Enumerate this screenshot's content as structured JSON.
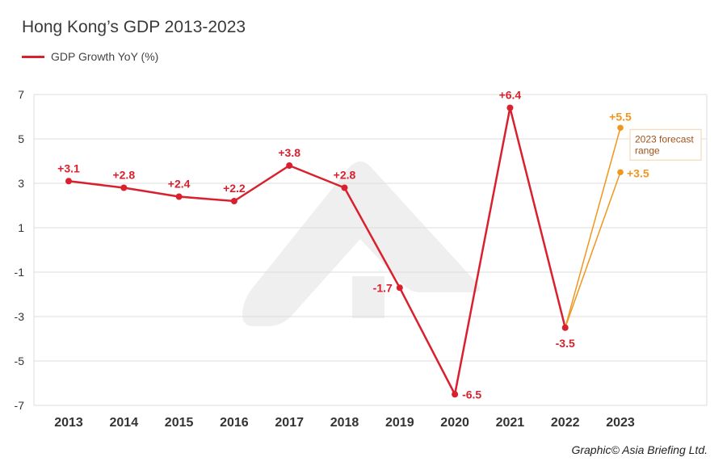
{
  "chart_data": {
    "type": "line",
    "title": "Hong Kong’s GDP 2013-2023",
    "legend": {
      "label": "GDP Growth YoY (%)",
      "position": "top-left"
    },
    "categories": [
      "2013",
      "2014",
      "2015",
      "2016",
      "2017",
      "2018",
      "2019",
      "2020",
      "2021",
      "2022",
      "2023"
    ],
    "series": [
      {
        "name": "GDP Growth YoY (%)",
        "color": "#d9202e",
        "x": [
          "2013",
          "2014",
          "2015",
          "2016",
          "2017",
          "2018",
          "2019",
          "2020",
          "2021",
          "2022"
        ],
        "values": [
          3.1,
          2.8,
          2.4,
          2.2,
          3.8,
          2.8,
          -1.7,
          -6.5,
          6.4,
          -3.5
        ],
        "labels": [
          "+3.1",
          "+2.8",
          "+2.4",
          "+2.2",
          "+3.8",
          "+2.8",
          "-1.7",
          "-6.5",
          "+6.4",
          "-3.5"
        ]
      }
    ],
    "forecast": {
      "color": "#f0961e",
      "from": {
        "x": "2022",
        "value": -3.5
      },
      "x": "2023",
      "high": 5.5,
      "high_label": "+5.5",
      "low": 3.5,
      "low_label": "+3.5",
      "note": [
        "2023 forecast",
        "range"
      ]
    },
    "yticks": [
      "7",
      "5",
      "3",
      "1",
      "-1",
      "-3",
      "-5",
      "-7"
    ],
    "ylim": [
      -7,
      7
    ],
    "grid": true
  },
  "credit": "Graphic© Asia Briefing Ltd."
}
